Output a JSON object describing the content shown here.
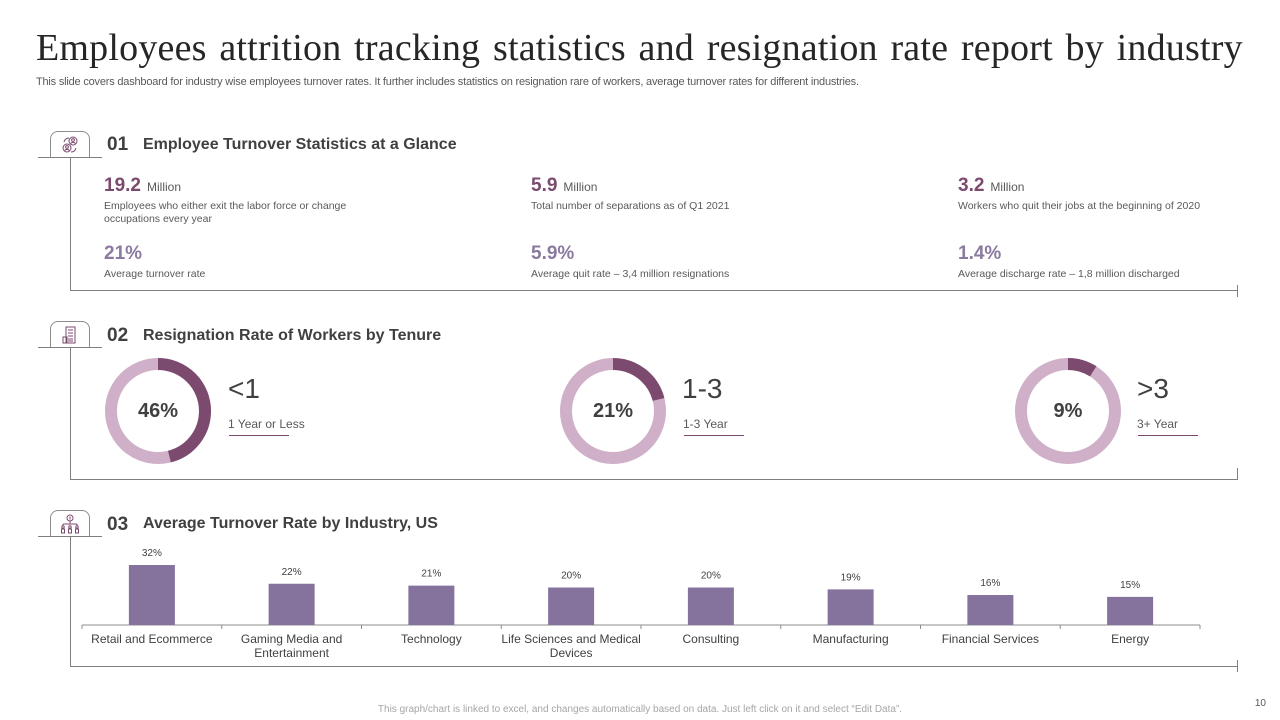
{
  "header": {
    "title": "Employees attrition tracking statistics and resignation rate report by industry",
    "subtitle": "This slide covers dashboard for industry wise employees turnover rates. It further includes statistics on resignation rare of workers, average turnover rates for different industries."
  },
  "colors": {
    "accent_dark": "#7b4a6e",
    "accent_light": "#d0b0c8",
    "bar": "#85739e",
    "stat_value": "#7b4a6e",
    "stat_pct": "#8a7aa0"
  },
  "section1": {
    "number": "01",
    "title": "Employee Turnover Statistics at a Glance",
    "icon": "people-exchange-icon",
    "stats": [
      {
        "value": "19.2",
        "unit": "Million",
        "desc": "Employees  who either exit the labor force or change occupations every year"
      },
      {
        "value": "5.9",
        "unit": "Million",
        "desc": "Total number of separations as of Q1 2021"
      },
      {
        "value": "3.2",
        "unit": "Million",
        "desc": "Workers who quit their jobs at the beginning of 2020"
      },
      {
        "value": "21%",
        "unit": "",
        "desc": "Average turnover rate"
      },
      {
        "value": "5.9%",
        "unit": "",
        "desc": "Average quit rate – 3,4 million  resignations"
      },
      {
        "value": "1.4%",
        "unit": "",
        "desc": "Average discharge rate – 1,8 million  discharged"
      }
    ]
  },
  "section2": {
    "number": "02",
    "title": "Resignation Rate of Workers by Tenure",
    "icon": "building-icon",
    "tenures": [
      {
        "percent": 46,
        "label": "46%",
        "range": "<1",
        "caption": "1 Year or Less"
      },
      {
        "percent": 21,
        "label": "21%",
        "range": "1-3",
        "caption": "1-3 Year"
      },
      {
        "percent": 9,
        "label": "9%",
        "range": ">3",
        "caption": "3+ Year"
      }
    ]
  },
  "section3": {
    "number": "03",
    "title": "Average Turnover Rate by Industry, US",
    "icon": "org-chart-dollar-icon"
  },
  "chart_data": {
    "type": "bar",
    "title": "Average Turnover Rate by Industry, US",
    "xlabel": "",
    "ylabel": "",
    "categories": [
      "Retail and Ecommerce",
      "Gaming Media and Entertainment",
      "Technology",
      "Life Sciences and Medical Devices",
      "Consulting",
      "Manufacturing",
      "Financial Services",
      "Energy"
    ],
    "category_lines": [
      [
        "Retail and Ecommerce"
      ],
      [
        "Gaming Media and",
        "Entertainment"
      ],
      [
        "Technology"
      ],
      [
        "Life Sciences and Medical",
        "Devices"
      ],
      [
        "Consulting"
      ],
      [
        "Manufacturing"
      ],
      [
        "Financial Services"
      ],
      [
        "Energy"
      ]
    ],
    "values": [
      32,
      22,
      21,
      20,
      20,
      19,
      16,
      15
    ],
    "data_labels": [
      "32%",
      "22%",
      "21%",
      "20%",
      "20%",
      "19%",
      "16%",
      "15%"
    ],
    "ylim": [
      0,
      32
    ],
    "grid": false,
    "legend": "none"
  },
  "footer": {
    "note": "This graph/chart is linked to excel,  and changes automatically based on data. Just left click on it and select “Edit Data”.",
    "page_number": "10"
  }
}
